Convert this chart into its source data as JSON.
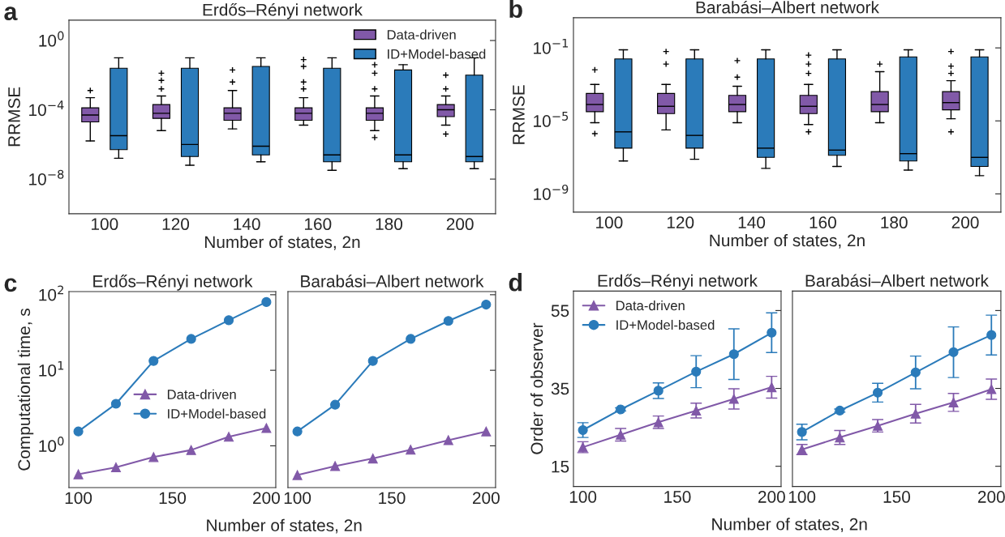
{
  "chart_data": [
    {
      "type": "box",
      "title": "Erdős–Rényi network",
      "xlabel": "Number of states, 2n",
      "ylabel": "RRMSE",
      "annotations": [
        "a"
      ],
      "categories": [
        "100",
        "120",
        "140",
        "160",
        "180",
        "200"
      ],
      "log": true,
      "ylim": [
        1e-10,
        15
      ],
      "yticks": [
        {
          "value": 1e-08,
          "label": "10$^{−8}$"
        },
        {
          "value": 0.0001,
          "label": "10$^{−4}$"
        },
        {
          "value": 1,
          "label": "10$^{0}$"
        }
      ],
      "legend": "top right",
      "series": [
        {
          "name": "Data-driven",
          "color": "#8159a8",
          "boxes": [
            {
              "low": 1.6e-06,
              "q1": 2e-05,
              "median": 5e-05,
              "q3": 0.00013,
              "high": 0.0005,
              "outliers": [
                0.0013
              ]
            },
            {
              "low": 6.3e-06,
              "q1": 3.2e-05,
              "median": 6.3e-05,
              "q3": 0.0002,
              "high": 0.00063,
              "outliers": [
                0.013,
                0.005,
                0.0016
              ]
            },
            {
              "low": 7.9e-06,
              "q1": 2.5e-05,
              "median": 6.3e-05,
              "q3": 0.00013,
              "high": 0.0013,
              "outliers": [
                0.02,
                0.004
              ]
            },
            {
              "low": 1.3e-05,
              "q1": 2.5e-05,
              "median": 6.3e-05,
              "q3": 0.00013,
              "high": 0.0005,
              "outliers": [
                0.079,
                0.032,
                0.004,
                0.0016
              ]
            },
            {
              "low": 6.3e-06,
              "q1": 2.5e-05,
              "median": 6.3e-05,
              "q3": 0.00013,
              "high": 0.00063,
              "outliers": [
                0.04,
                0.013,
                0.0016,
                2.5e-06
              ]
            },
            {
              "low": 1.3e-05,
              "q1": 4e-05,
              "median": 0.0001,
              "q3": 0.0002,
              "high": 0.00063,
              "outliers": [
                0.01,
                0.0016,
                4e-06
              ]
            }
          ]
        },
        {
          "name": "ID+Model-based",
          "color": "#2b7bba",
          "boxes": [
            {
              "low": 1.6e-07,
              "q1": 5e-07,
              "median": 3.2e-06,
              "q3": 0.025,
              "high": 0.1
            },
            {
              "low": 6.3e-08,
              "q1": 2e-07,
              "median": 1e-06,
              "q3": 0.025,
              "high": 0.1
            },
            {
              "low": 1e-07,
              "q1": 2.5e-07,
              "median": 7.9e-07,
              "q3": 0.032,
              "high": 0.1
            },
            {
              "low": 3.2e-08,
              "q1": 1e-07,
              "median": 2.5e-07,
              "q3": 0.025,
              "high": 0.1
            },
            {
              "low": 4e-08,
              "q1": 1e-07,
              "median": 2.5e-07,
              "q3": 0.02,
              "high": 0.04
            },
            {
              "low": 4e-08,
              "q1": 1e-07,
              "median": 2e-07,
              "q3": 0.01,
              "high": 0.1
            }
          ]
        }
      ]
    },
    {
      "type": "box",
      "title": "Barabási–Albert network",
      "xlabel": "Number of states, 2n",
      "ylabel": "RRMSE",
      "annotations": [
        "b"
      ],
      "categories": [
        "100",
        "120",
        "140",
        "160",
        "180",
        "200"
      ],
      "log": true,
      "ylim": [
        1e-10,
        4.5
      ],
      "yticks": [
        {
          "value": 1e-09,
          "label": "10$^{−9}$"
        },
        {
          "value": 1e-05,
          "label": "10$^{−5}$"
        },
        {
          "value": 0.1,
          "label": "10$^{−1}$"
        }
      ],
      "series": [
        {
          "color": "#8159a8",
          "boxes": [
            {
              "low": 7.9e-06,
              "q1": 3.2e-05,
              "median": 7.9e-05,
              "q3": 0.00032,
              "high": 0.001,
              "outliers": [
                0.0063,
                2e-06
              ]
            },
            {
              "low": 3.2e-06,
              "q1": 2.5e-05,
              "median": 6.3e-05,
              "q3": 0.00032,
              "high": 0.001,
              "outliers": [
                0.063,
                0.013
              ]
            },
            {
              "low": 7.9e-06,
              "q1": 3.2e-05,
              "median": 7.9e-05,
              "q3": 0.00025,
              "high": 0.00079,
              "outliers": [
                0.02,
                0.0025
              ]
            },
            {
              "low": 6.3e-06,
              "q1": 2.5e-05,
              "median": 6.3e-05,
              "q3": 0.00025,
              "high": 0.001,
              "outliers": [
                0.04,
                0.013,
                0.004,
                2.5e-06
              ]
            },
            {
              "low": 7.9e-06,
              "q1": 3.2e-05,
              "median": 7.9e-05,
              "q3": 0.0004,
              "high": 0.005,
              "outliers": [
                0.013
              ]
            },
            {
              "low": 1.3e-05,
              "q1": 4e-05,
              "median": 0.0001,
              "q3": 0.0004,
              "high": 0.0016,
              "outliers": [
                0.063,
                0.01,
                0.004,
                2.5e-06
              ]
            }
          ]
        },
        {
          "color": "#2b7bba",
          "boxes": [
            {
              "low": 6.3e-08,
              "q1": 3.2e-07,
              "median": 2.5e-06,
              "q3": 0.025,
              "high": 0.079
            },
            {
              "low": 7.9e-08,
              "q1": 3.2e-07,
              "median": 1.6e-06,
              "q3": 0.025,
              "high": 0.079
            },
            {
              "low": 2.5e-08,
              "q1": 1e-07,
              "median": 3.2e-07,
              "q3": 0.025,
              "high": 0.079
            },
            {
              "low": 3.2e-08,
              "q1": 1.3e-07,
              "median": 2.5e-07,
              "q3": 0.025,
              "high": 0.079
            },
            {
              "low": 2e-08,
              "q1": 6.3e-08,
              "median": 1.6e-07,
              "q3": 0.032,
              "high": 0.079
            },
            {
              "low": 1e-08,
              "q1": 3.2e-08,
              "median": 1e-07,
              "q3": 0.032,
              "high": 0.079
            }
          ]
        }
      ]
    },
    {
      "type": "line",
      "title": "Erdős–Rényi network",
      "xlabel": "Number of states, 2n",
      "ylabel": "Computational time, s",
      "annotations": [
        "c"
      ],
      "x": [
        100,
        120,
        140,
        160,
        180,
        200
      ],
      "log": true,
      "xlim": [
        95,
        205
      ],
      "xticks": [
        100,
        150,
        200
      ],
      "ylim": [
        0.28,
        110
      ],
      "yticks": [
        {
          "value": 1,
          "label": "10$^{0}$"
        },
        {
          "value": 10,
          "label": "10$^{1}$"
        },
        {
          "value": 100,
          "label": "10$^{2}$"
        }
      ],
      "legend": "right",
      "series": [
        {
          "name": "Data-driven",
          "color": "#8159a8",
          "marker": "triangle",
          "values": [
            0.42,
            0.52,
            0.71,
            0.88,
            1.32,
            1.72
          ]
        },
        {
          "name": "ID+Model-based",
          "color": "#2b7bba",
          "marker": "circle",
          "values": [
            1.55,
            3.6,
            13.3,
            26,
            46,
            80
          ]
        }
      ]
    },
    {
      "type": "line",
      "title": "Barabási–Albert network",
      "x": [
        100,
        120,
        140,
        160,
        180,
        200
      ],
      "log": true,
      "xlim": [
        95,
        205
      ],
      "xticks": [
        100,
        150,
        200
      ],
      "ylim": [
        0.28,
        110
      ],
      "yticks": [
        1,
        10,
        100
      ],
      "tick_labels": "x",
      "series": [
        {
          "color": "#8159a8",
          "marker": "triangle",
          "values": [
            0.41,
            0.54,
            0.68,
            0.89,
            1.19,
            1.55
          ]
        },
        {
          "color": "#2b7bba",
          "marker": "circle",
          "values": [
            1.55,
            3.5,
            13.3,
            26,
            45,
            74
          ]
        }
      ]
    },
    {
      "type": "line",
      "title": "Erdős–Rényi network",
      "xlabel": "Number of states, 2n",
      "ylabel": "Order of observer",
      "annotations": [
        "d"
      ],
      "x": [
        100,
        120,
        140,
        160,
        180,
        200
      ],
      "xlim": [
        95,
        205
      ],
      "xticks": [
        100,
        150,
        200
      ],
      "ylim": [
        9.8,
        60
      ],
      "yticks": [
        15,
        35,
        55
      ],
      "legend": "top left",
      "series": [
        {
          "name": "Data-driven",
          "color": "#8159a8",
          "marker": "triangle",
          "values": [
            19.9,
            23.1,
            26.3,
            29.3,
            32.3,
            35.3
          ],
          "errors": [
            1.4,
            1.6,
            1.6,
            1.9,
            2.6,
            2.8
          ]
        },
        {
          "name": "ID+Model-based",
          "color": "#2b7bba",
          "marker": "circle",
          "values": [
            24.3,
            29.6,
            34.4,
            39.3,
            43.8,
            49.3
          ],
          "errors": [
            1.9,
            0.4,
            2.0,
            4.1,
            6.5,
            5.1
          ]
        }
      ]
    },
    {
      "type": "line",
      "title": "Barabási–Albert network",
      "x": [
        100,
        120,
        140,
        160,
        180,
        200
      ],
      "xlim": [
        95,
        205
      ],
      "xticks": [
        100,
        150,
        200
      ],
      "ylim": [
        9.8,
        60
      ],
      "yticks": [
        15,
        35,
        55
      ],
      "tick_labels": "x",
      "series": [
        {
          "color": "#8159a8",
          "marker": "triangle",
          "values": [
            19.3,
            22.4,
            25.4,
            28.5,
            31.4,
            34.8
          ],
          "errors": [
            1.3,
            1.8,
            1.6,
            2.4,
            2.3,
            2.6
          ]
        },
        {
          "color": "#2b7bba",
          "marker": "circle",
          "values": [
            23.8,
            29.3,
            33.9,
            39.1,
            44.3,
            48.7
          ],
          "errors": [
            2.0,
            0.4,
            2.4,
            4.2,
            6.5,
            5.1
          ]
        }
      ]
    }
  ]
}
